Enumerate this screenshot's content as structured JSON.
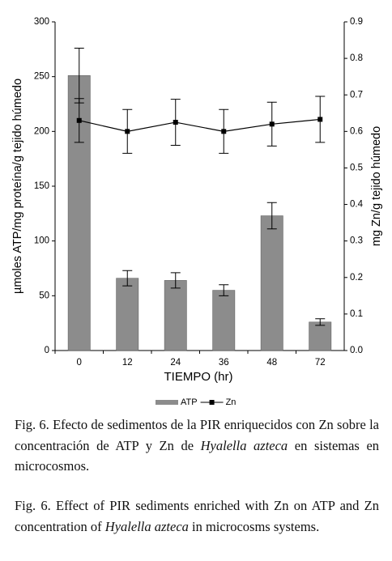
{
  "chart_data": {
    "type": "bar",
    "x_label": "TIEMPO (hr)",
    "y_label": "µmoles ATP/mg proteína/g tejido húmedo",
    "y2_label": "mg Zn/g tejido húmedo",
    "categories": [
      "0",
      "12",
      "24",
      "36",
      "48",
      "72"
    ],
    "series": [
      {
        "name": "ATP",
        "type": "bar",
        "color": "#8c8c8c",
        "values": [
          251,
          66,
          64,
          55,
          123,
          26
        ],
        "errors": [
          25,
          7,
          7,
          5,
          12,
          3
        ]
      },
      {
        "name": "Zn",
        "type": "line",
        "axis": "y2",
        "color": "#000000",
        "values": [
          0.63,
          0.6,
          0.625,
          0.6,
          0.62,
          0.633
        ],
        "errors": [
          0.06,
          0.06,
          0.063,
          0.06,
          0.06,
          0.063
        ]
      }
    ],
    "ylim": [
      0,
      300
    ],
    "yticks": [
      0,
      50,
      100,
      150,
      200,
      250,
      300
    ],
    "y2lim": [
      0,
      0.9
    ],
    "y2ticks": [
      {
        "value": 0,
        "label": "0.0"
      },
      0.1,
      0.2,
      0.3,
      0.4,
      0.5,
      0.6,
      0.7,
      0.8,
      0.9
    ],
    "legend": "bottom",
    "grid": false
  },
  "captions": [
    [
      "Fig. 6. Efecto de sedimentos de la PIR enriquecidos con Zn sobre la concentración de ATP y Zn de ",
      "Hyalella azteca",
      " en sistemas en microcosmos."
    ],
    [
      "Fig. 6. Effect of PIR sediments enriched with Zn on ATP and Zn concentration of ",
      "Hyalella azteca",
      " in microcosms systems."
    ]
  ]
}
